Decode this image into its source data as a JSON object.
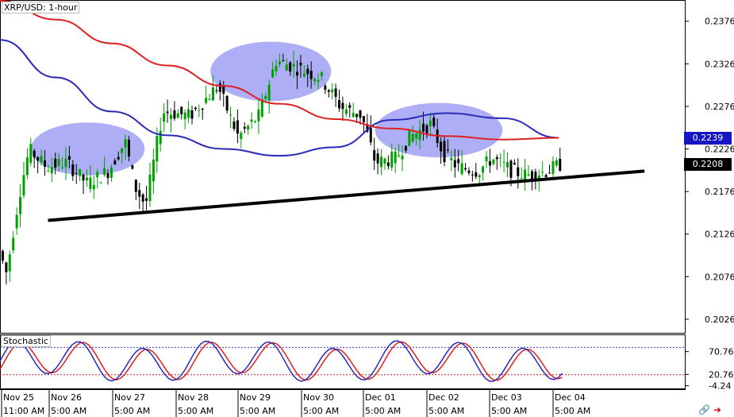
{
  "chart_data": {
    "type": "candlestick",
    "title": "XRP/USD: 1-hour",
    "y_axis_ticks": [
      "0.2376",
      "0.2326",
      "0.2276",
      "0.2226",
      "0.2176",
      "0.2126",
      "0.2076",
      "0.2026"
    ],
    "ylim": [
      0.201,
      0.24
    ],
    "price_labels": {
      "ma_blue": "0.2239",
      "last": "0.2208"
    },
    "x_labels": [
      {
        "date": "Nov 25",
        "time": "11:00 AM"
      },
      {
        "date": "Nov 26",
        "time": "5:00 AM"
      },
      {
        "date": "Nov 27",
        "time": "5:00 AM"
      },
      {
        "date": "Nov 28",
        "time": "5:00 AM"
      },
      {
        "date": "Nov 29",
        "time": "5:00 AM"
      },
      {
        "date": "Nov 30",
        "time": "5:00 AM"
      },
      {
        "date": "Dec 01",
        "time": "5:00 AM"
      },
      {
        "date": "Dec 02",
        "time": "5:00 AM"
      },
      {
        "date": "Dec 03",
        "time": "5:00 AM"
      },
      {
        "date": "Dec 04",
        "time": "5:00 AM"
      }
    ],
    "moving_averages": [
      {
        "color": "#2a2ab8",
        "values": [
          0.2354,
          0.231,
          0.227,
          0.2242,
          0.2226,
          0.2218,
          0.2228,
          0.226,
          0.2268,
          0.2262,
          0.2239
        ]
      },
      {
        "color": "#dd1f1f",
        "values": [
          0.24,
          0.2378,
          0.235,
          0.2324,
          0.23,
          0.2279,
          0.2261,
          0.225,
          0.2241,
          0.2237,
          0.2239
        ]
      }
    ],
    "trendline": {
      "start": [
        0.07,
        0.2142
      ],
      "end": [
        0.94,
        0.22
      ],
      "color": "#000000"
    },
    "highlights": [
      {
        "cx": 0.128,
        "cy": 0.2226,
        "rx": 0.083,
        "ry": 0.0031,
        "color": "#6b6bef"
      },
      {
        "cx": 0.395,
        "cy": 0.2317,
        "rx": 0.088,
        "ry": 0.0035,
        "color": "#6b6bef"
      },
      {
        "cx": 0.64,
        "cy": 0.2248,
        "rx": 0.093,
        "ry": 0.0032,
        "color": "#6b6bef"
      }
    ],
    "stochastic": {
      "label": "Stochastic",
      "ticks": [
        "70.76",
        "20.76",
        "-4.24"
      ],
      "ylim": [
        -10,
        105
      ],
      "levels": [
        {
          "value": 80,
          "color": "#3a3ad0"
        },
        {
          "value": 20,
          "color": "#d02020"
        }
      ],
      "k_color": "#2a2ab8",
      "d_color": "#dd1f1f"
    },
    "grid": false,
    "up_color": "#00a000",
    "down_color": "#000000"
  },
  "colors": {
    "badge_blue": "#1515c4",
    "badge_black": "#000000",
    "icon_link": "#2030c0",
    "icon_arrow": "#c01010"
  },
  "icons": [
    "link-icon",
    "arrow-right-icon"
  ]
}
